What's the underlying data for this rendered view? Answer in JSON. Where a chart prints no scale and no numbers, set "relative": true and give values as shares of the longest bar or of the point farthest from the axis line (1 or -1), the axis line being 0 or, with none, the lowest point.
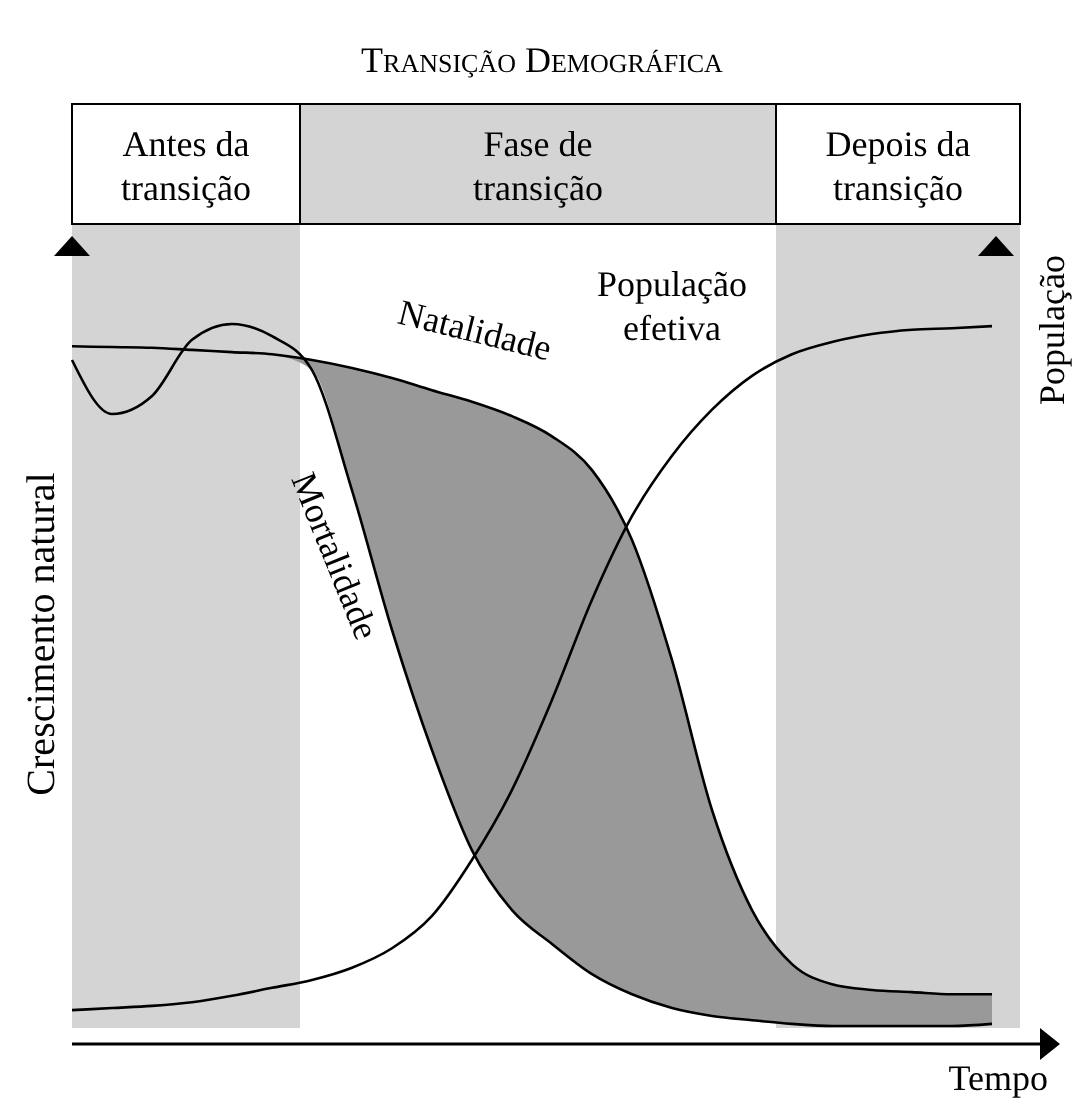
{
  "chart_data": {
    "type": "line",
    "title": "Transição Demográfica",
    "xlabel": "Tempo",
    "ylabel": "Crescimento natural",
    "y2label": "População",
    "relative": true,
    "annotations": [
      "Antes da transição",
      "Fase de transição",
      "Depois da transição"
    ],
    "categories": [
      null,
      null,
      null,
      null,
      null,
      null,
      null,
      null,
      null,
      null,
      null,
      null,
      null,
      null,
      null,
      null,
      null,
      null,
      null,
      null,
      null,
      null,
      null,
      null
    ],
    "series": [
      {
        "name": "Natalidade",
        "color": "#000000",
        "values": [
          0.969,
          0.968,
          0.967,
          0.964,
          0.961,
          0.958,
          0.95,
          0.939,
          0.925,
          0.908,
          0.892,
          0.872,
          0.844,
          0.797,
          0.7,
          0.533,
          0.325,
          0.186,
          0.111,
          0.083,
          0.075,
          0.072,
          0.069,
          0.069
        ],
        "lower": [
          null,
          null,
          null,
          null,
          null,
          0.958,
          0.936,
          0.769,
          0.575,
          0.408,
          0.269,
          0.186,
          0.139,
          0.097,
          0.069,
          0.05,
          0.039,
          0.033,
          0.028,
          0.025,
          0.025,
          0.025,
          0.025,
          0.028
        ],
        "upper": [
          null,
          null,
          null,
          null,
          null,
          0.958,
          0.95,
          0.939,
          0.925,
          0.908,
          0.892,
          0.872,
          0.844,
          0.797,
          0.7,
          0.533,
          0.325,
          0.186,
          0.111,
          0.083,
          0.075,
          0.072,
          0.069,
          0.069
        ]
      },
      {
        "name": "Mortalidade",
        "color": "#000000",
        "values": [
          0.95,
          0.875,
          0.9,
          0.978,
          1,
          0.983,
          0.936,
          0.769,
          0.575,
          0.408,
          0.269,
          0.186,
          0.139,
          0.097,
          0.069,
          0.05,
          0.039,
          0.033,
          0.028,
          0.025,
          0.025,
          0.025,
          0.025,
          0.028
        ]
      },
      {
        "name": "População efetiva",
        "color": "#000000",
        "values": [
          0.047,
          0.05,
          0.053,
          0.058,
          0.067,
          0.078,
          0.089,
          0.106,
          0.133,
          0.178,
          0.256,
          0.353,
          0.478,
          0.617,
          0.733,
          0.817,
          0.881,
          0.928,
          0.958,
          0.975,
          0.986,
          0.992,
          0.994,
          0.997
        ]
      }
    ]
  }
}
